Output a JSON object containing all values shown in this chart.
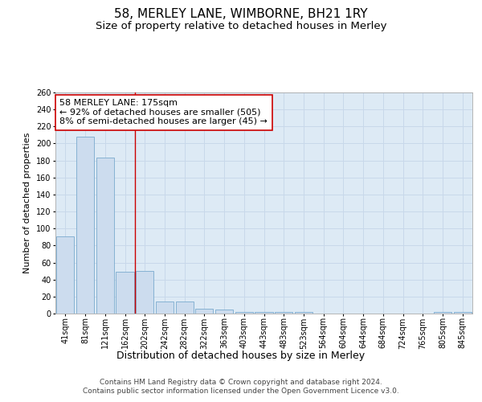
{
  "title": "58, MERLEY LANE, WIMBORNE, BH21 1RY",
  "subtitle": "Size of property relative to detached houses in Merley",
  "xlabel": "Distribution of detached houses by size in Merley",
  "ylabel": "Number of detached properties",
  "categories": [
    "41sqm",
    "81sqm",
    "121sqm",
    "162sqm",
    "202sqm",
    "242sqm",
    "282sqm",
    "322sqm",
    "363sqm",
    "403sqm",
    "443sqm",
    "483sqm",
    "523sqm",
    "564sqm",
    "604sqm",
    "644sqm",
    "684sqm",
    "724sqm",
    "765sqm",
    "805sqm",
    "845sqm"
  ],
  "values": [
    91,
    208,
    183,
    49,
    50,
    14,
    14,
    6,
    5,
    2,
    2,
    2,
    2,
    0,
    0,
    0,
    0,
    0,
    0,
    2,
    2
  ],
  "bar_color": "#ccdcee",
  "bar_edge_color": "#7aaace",
  "grid_color": "#c8d8ea",
  "background_color": "#ddeaf5",
  "annotation_line1": "58 MERLEY LANE: 175sqm",
  "annotation_line2": "← 92% of detached houses are smaller (505)",
  "annotation_line3": "8% of semi-detached houses are larger (45) →",
  "annotation_box_color": "#ffffff",
  "annotation_box_edge_color": "#cc0000",
  "vline_x": 3.5,
  "vline_color": "#cc0000",
  "ylim": [
    0,
    260
  ],
  "yticks": [
    0,
    20,
    40,
    60,
    80,
    100,
    120,
    140,
    160,
    180,
    200,
    220,
    240,
    260
  ],
  "footnote": "Contains HM Land Registry data © Crown copyright and database right 2024.\nContains public sector information licensed under the Open Government Licence v3.0.",
  "title_fontsize": 11,
  "subtitle_fontsize": 9.5,
  "xlabel_fontsize": 9,
  "ylabel_fontsize": 8,
  "tick_fontsize": 7,
  "annot_fontsize": 8,
  "footnote_fontsize": 6.5
}
